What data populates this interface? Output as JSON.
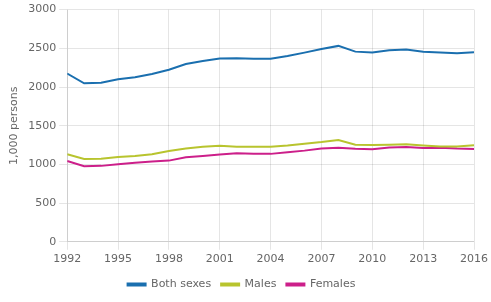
{
  "chart_data": {
    "type": "line",
    "ylabel": "1,000 persons",
    "x": [
      1992,
      1993,
      1994,
      1995,
      1996,
      1997,
      1998,
      1999,
      2000,
      2001,
      2002,
      2003,
      2004,
      2005,
      2006,
      2007,
      2008,
      2009,
      2010,
      2011,
      2012,
      2013,
      2014,
      2015,
      2016
    ],
    "series": [
      {
        "name": "Both sexes",
        "color": "#1a6faf",
        "values": [
          2174,
          2048,
          2054,
          2099,
          2127,
          2169,
          2222,
          2296,
          2335,
          2367,
          2372,
          2365,
          2365,
          2401,
          2444,
          2492,
          2531,
          2457,
          2447,
          2474,
          2483,
          2457,
          2447,
          2437,
          2448
        ]
      },
      {
        "name": "Males",
        "color": "#b8c42e",
        "values": [
          1130,
          1071,
          1073,
          1096,
          1107,
          1130,
          1174,
          1206,
          1228,
          1240,
          1229,
          1227,
          1229,
          1243,
          1266,
          1288,
          1315,
          1255,
          1251,
          1255,
          1259,
          1244,
          1231,
          1232,
          1248
        ]
      },
      {
        "name": "Females",
        "color": "#cc1f8a",
        "values": [
          1044,
          977,
          981,
          1003,
          1020,
          1039,
          1049,
          1091,
          1107,
          1127,
          1143,
          1138,
          1136,
          1158,
          1178,
          1204,
          1216,
          1202,
          1196,
          1219,
          1224,
          1213,
          1215,
          1205,
          1200
        ]
      }
    ],
    "xlim": [
      1992,
      2016
    ],
    "xticks": [
      1992,
      1995,
      1998,
      2001,
      2004,
      2007,
      2010,
      2013,
      2016
    ],
    "ylim": [
      0,
      3000
    ],
    "yticks": [
      0,
      500,
      1000,
      1500,
      2000,
      2500,
      3000
    ],
    "grid": true,
    "legend": "bottom"
  }
}
